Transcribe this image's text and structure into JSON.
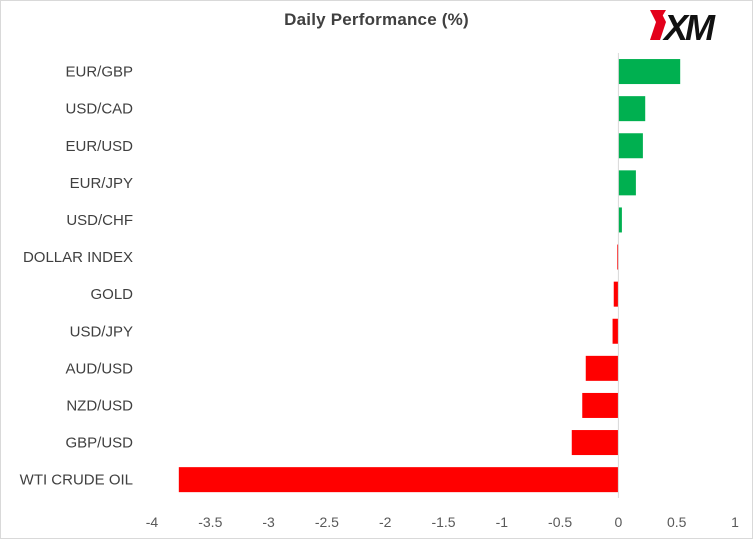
{
  "chart_data": {
    "type": "bar",
    "orientation": "horizontal",
    "title": "Daily Performance  (%)",
    "xlabel": "",
    "ylabel": "",
    "categories": [
      "EUR/GBP",
      "USD/CAD",
      "EUR/USD",
      "EUR/JPY",
      "USD/CHF",
      "DOLLAR INDEX",
      "GOLD",
      "USD/JPY",
      "AUD/USD",
      "NZD/USD",
      "GBP/USD",
      "WTI CRUDE OIL"
    ],
    "values": [
      0.53,
      0.23,
      0.21,
      0.15,
      0.03,
      -0.01,
      -0.04,
      -0.05,
      -0.28,
      -0.31,
      -0.4,
      -3.77
    ],
    "xlim": [
      -4,
      1
    ],
    "xticks": [
      -4,
      -3.5,
      -3,
      -2.5,
      -2,
      -1.5,
      -1,
      -0.5,
      0,
      0.5,
      1
    ],
    "xtick_labels": [
      "-4",
      "-3.5",
      "-3",
      "-2.5",
      "-2",
      "-1.5",
      "-1",
      "-0.5",
      "0",
      "0.5",
      "1"
    ],
    "grid": false,
    "legend": "none",
    "colors": {
      "positive": "#00b050",
      "negative": "#ff0000",
      "axis": "#d9d9d9"
    }
  },
  "logo": {
    "text": "XM",
    "accent": "#e3001b",
    "ink": "#111111"
  }
}
